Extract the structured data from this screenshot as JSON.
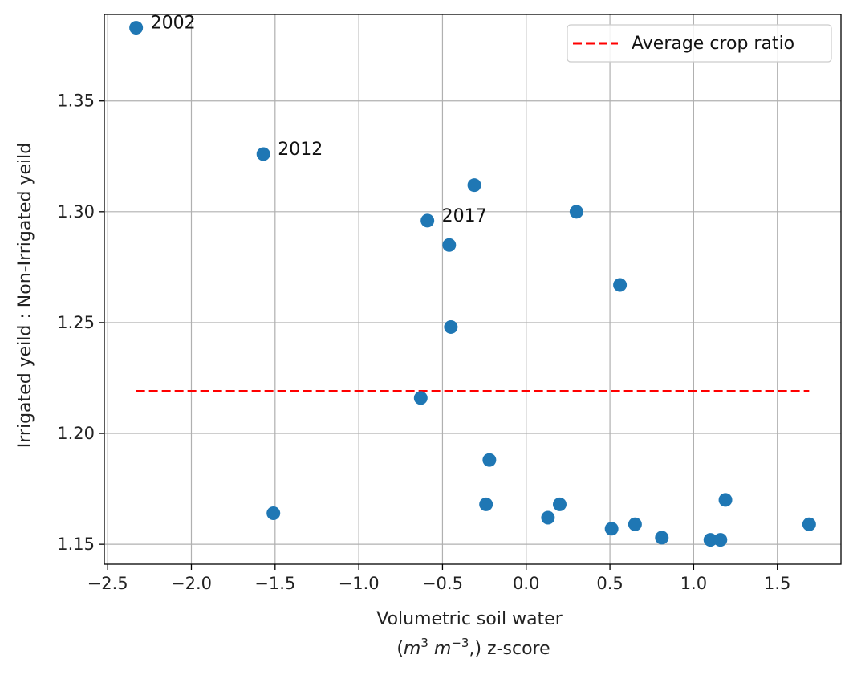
{
  "chart_data": {
    "type": "scatter",
    "xlabel_line1": "Volumetric soil water",
    "xlabel_line2": "z-score",
    "xlabel_units": {
      "m": "m",
      "exp1": "3",
      "m2": "m",
      "exp2": "−3",
      "tail": ",)"
    },
    "ylabel": "Irrigated yeild : Non-Irrigated yeild",
    "xlim": [
      -2.52,
      1.88
    ],
    "ylim": [
      1.141,
      1.389
    ],
    "xticks": [
      -2.5,
      -2.0,
      -1.5,
      -1.0,
      -0.5,
      0.0,
      0.5,
      1.0,
      1.5
    ],
    "xtick_labels": [
      "−2.5",
      "−2.0",
      "−1.5",
      "−1.0",
      "−0.5",
      "0.0",
      "0.5",
      "1.0",
      "1.5"
    ],
    "yticks": [
      1.15,
      1.2,
      1.25,
      1.3,
      1.35
    ],
    "ytick_labels": [
      "1.15",
      "1.20",
      "1.25",
      "1.30",
      "1.35"
    ],
    "grid": true,
    "point_color": "#1f77b4",
    "points": [
      {
        "x": -2.33,
        "y": 1.383
      },
      {
        "x": -1.57,
        "y": 1.326
      },
      {
        "x": -1.51,
        "y": 1.164
      },
      {
        "x": -0.63,
        "y": 1.216
      },
      {
        "x": -0.59,
        "y": 1.296
      },
      {
        "x": -0.46,
        "y": 1.285
      },
      {
        "x": -0.45,
        "y": 1.248
      },
      {
        "x": -0.31,
        "y": 1.312
      },
      {
        "x": -0.24,
        "y": 1.168
      },
      {
        "x": -0.22,
        "y": 1.188
      },
      {
        "x": 0.13,
        "y": 1.162
      },
      {
        "x": 0.2,
        "y": 1.168
      },
      {
        "x": 0.3,
        "y": 1.3
      },
      {
        "x": 0.51,
        "y": 1.157
      },
      {
        "x": 0.56,
        "y": 1.267
      },
      {
        "x": 0.65,
        "y": 1.159
      },
      {
        "x": 0.81,
        "y": 1.153
      },
      {
        "x": 1.1,
        "y": 1.152
      },
      {
        "x": 1.16,
        "y": 1.152
      },
      {
        "x": 1.19,
        "y": 1.17
      },
      {
        "x": 1.69,
        "y": 1.159
      }
    ],
    "annotations": [
      {
        "text": "2002",
        "x": -2.33,
        "y": 1.383
      },
      {
        "text": "2012",
        "x": -1.57,
        "y": 1.326
      },
      {
        "text": "2017",
        "x": -0.59,
        "y": 1.296
      }
    ],
    "average_line": {
      "label": "Average crop ratio",
      "y": 1.219,
      "x_start": -2.33,
      "x_end": 1.69,
      "color": "#ff0000"
    },
    "legend_position": "top-right"
  }
}
